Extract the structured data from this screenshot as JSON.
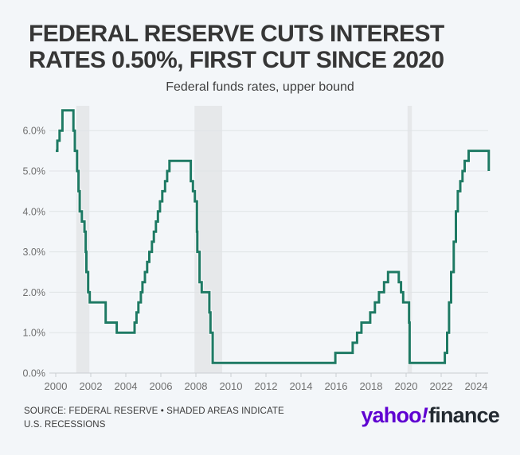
{
  "header": {
    "title_lines": [
      "FEDERAL RESERVE CUTS INTEREST",
      "RATES 0.50%, FIRST CUT SINCE 2020"
    ],
    "subtitle": "Federal funds rates, upper bound"
  },
  "chart_data": {
    "type": "line",
    "step": true,
    "title": "FEDERAL RESERVE CUTS INTEREST RATES 0.50%, FIRST CUT SINCE 2020",
    "subtitle": "Federal funds rates, upper bound",
    "xlabel": "",
    "ylabel": "",
    "xlim": [
      2000,
      2024.85
    ],
    "ylim": [
      0,
      6.6
    ],
    "grid": true,
    "legend_position": "none",
    "x_ticks": [
      2000,
      2002,
      2004,
      2006,
      2008,
      2010,
      2012,
      2014,
      2016,
      2018,
      2020,
      2022,
      2024
    ],
    "y_ticks": [
      "0.0%",
      "1.0%",
      "2.0%",
      "3.0%",
      "4.0%",
      "5.0%",
      "6.0%"
    ],
    "line_color": "#1e7a64",
    "band_color": "#e6e8ea",
    "grid_color": "#e0e3e6",
    "axis_color": "#c9cdd1",
    "tick_label_color": "#6f6f6f",
    "series": [
      {
        "name": "Federal funds rate, upper bound (%)",
        "points": [
          [
            2000.0,
            5.5
          ],
          [
            2000.09,
            5.75
          ],
          [
            2000.22,
            6.0
          ],
          [
            2000.38,
            6.5
          ],
          [
            2001.01,
            6.0
          ],
          [
            2001.09,
            5.5
          ],
          [
            2001.22,
            5.0
          ],
          [
            2001.3,
            4.5
          ],
          [
            2001.37,
            4.0
          ],
          [
            2001.49,
            3.75
          ],
          [
            2001.64,
            3.5
          ],
          [
            2001.71,
            3.0
          ],
          [
            2001.75,
            2.5
          ],
          [
            2001.85,
            2.0
          ],
          [
            2001.94,
            1.75
          ],
          [
            2002.85,
            1.25
          ],
          [
            2003.48,
            1.0
          ],
          [
            2004.5,
            1.25
          ],
          [
            2004.61,
            1.5
          ],
          [
            2004.72,
            1.75
          ],
          [
            2004.86,
            2.0
          ],
          [
            2004.95,
            2.25
          ],
          [
            2005.09,
            2.5
          ],
          [
            2005.22,
            2.75
          ],
          [
            2005.34,
            3.0
          ],
          [
            2005.49,
            3.25
          ],
          [
            2005.6,
            3.5
          ],
          [
            2005.72,
            3.75
          ],
          [
            2005.83,
            4.0
          ],
          [
            2005.95,
            4.25
          ],
          [
            2006.08,
            4.5
          ],
          [
            2006.24,
            4.75
          ],
          [
            2006.36,
            5.0
          ],
          [
            2006.49,
            5.25
          ],
          [
            2007.71,
            4.75
          ],
          [
            2007.83,
            4.5
          ],
          [
            2007.94,
            4.25
          ],
          [
            2008.06,
            3.5
          ],
          [
            2008.08,
            3.0
          ],
          [
            2008.21,
            2.25
          ],
          [
            2008.33,
            2.0
          ],
          [
            2008.77,
            1.5
          ],
          [
            2008.83,
            1.0
          ],
          [
            2008.96,
            0.25
          ],
          [
            2015.96,
            0.5
          ],
          [
            2016.95,
            0.75
          ],
          [
            2017.2,
            1.0
          ],
          [
            2017.45,
            1.25
          ],
          [
            2017.95,
            1.5
          ],
          [
            2018.22,
            1.75
          ],
          [
            2018.45,
            2.0
          ],
          [
            2018.74,
            2.25
          ],
          [
            2018.97,
            2.5
          ],
          [
            2019.58,
            2.25
          ],
          [
            2019.71,
            2.0
          ],
          [
            2019.83,
            1.75
          ],
          [
            2020.17,
            1.25
          ],
          [
            2020.2,
            0.25
          ],
          [
            2022.21,
            0.5
          ],
          [
            2022.34,
            1.0
          ],
          [
            2022.45,
            1.75
          ],
          [
            2022.57,
            2.5
          ],
          [
            2022.72,
            3.25
          ],
          [
            2022.84,
            4.0
          ],
          [
            2022.95,
            4.5
          ],
          [
            2023.09,
            4.75
          ],
          [
            2023.22,
            5.0
          ],
          [
            2023.34,
            5.25
          ],
          [
            2023.57,
            5.5
          ],
          [
            2024.72,
            5.0
          ]
        ]
      }
    ],
    "recession_bands": [
      {
        "label": "2001 recession",
        "start": 2001.17,
        "end": 2001.92
      },
      {
        "label": "2008-09 recession",
        "start": 2007.92,
        "end": 2009.5
      },
      {
        "label": "2020 recession",
        "start": 2020.08,
        "end": 2020.33
      }
    ]
  },
  "footer": {
    "source_lines": [
      "SOURCE: FEDERAL RESERVE • SHADED AREAS INDICATE",
      "U.S. RECESSIONS"
    ],
    "logo": {
      "part1": "yahoo",
      "bang": "!",
      "part2": "finance",
      "purple": "#5f01d1",
      "dark": "#232a31"
    }
  }
}
